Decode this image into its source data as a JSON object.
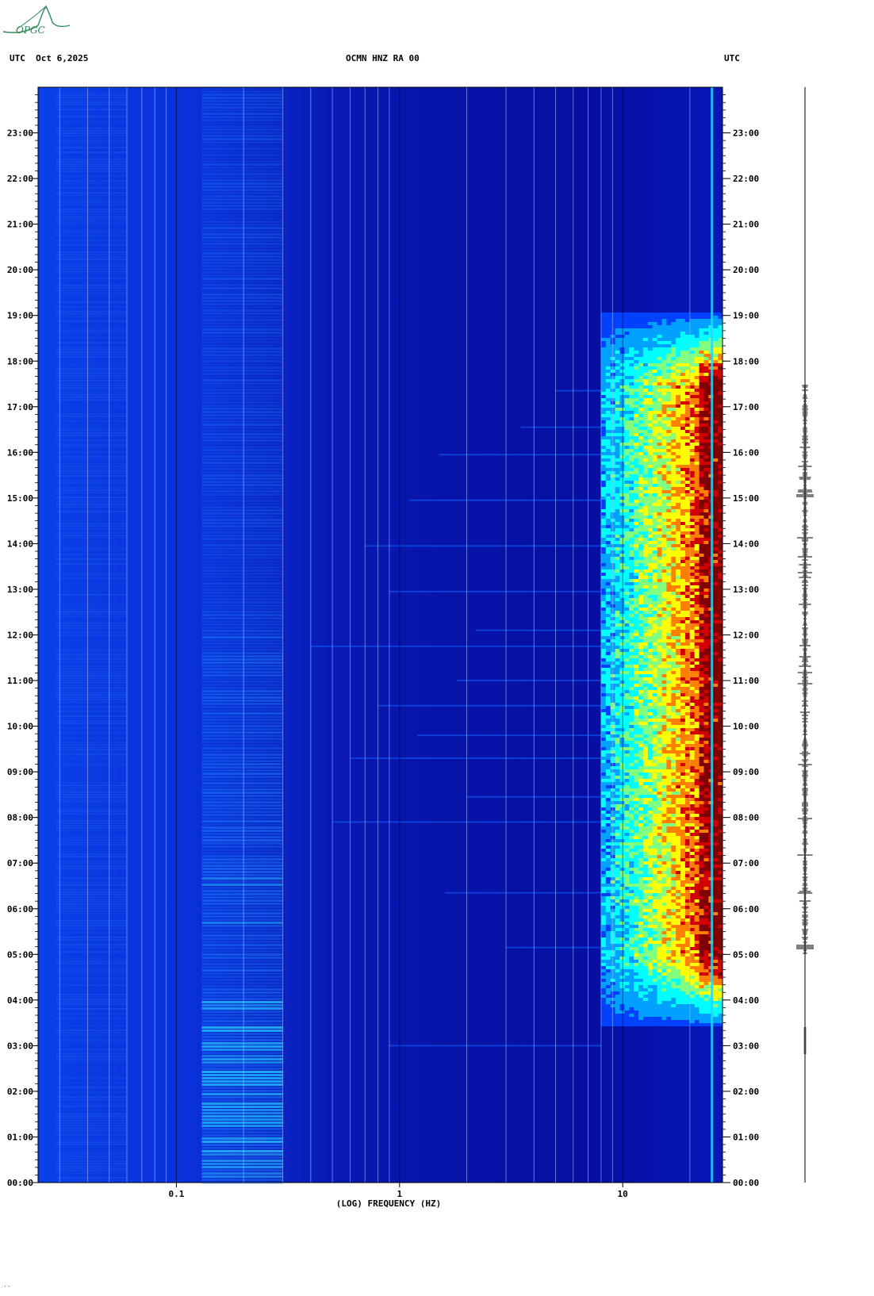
{
  "logo": {
    "text": "OPGC",
    "color": "#2e8b57"
  },
  "header": {
    "left": "UTC  Oct 6,2025",
    "center": "OCMN HNZ RA 00",
    "right": "UTC"
  },
  "footer_mark": "′′",
  "chart_data": {
    "type": "heatmap",
    "title": "OCMN HNZ RA 00",
    "xlabel": "(LOG) FREQUENCY (HZ)",
    "xscale": "log",
    "xlim": [
      0.024,
      28
    ],
    "x_ticks": [
      {
        "value": 0.1,
        "label": "0.1"
      },
      {
        "value": 1,
        "label": "1"
      },
      {
        "value": 10,
        "label": "10"
      }
    ],
    "ylabel": "UTC",
    "ylim": [
      "00:00",
      "24:00"
    ],
    "y_ticks": [
      "00:00",
      "01:00",
      "02:00",
      "03:00",
      "04:00",
      "05:00",
      "06:00",
      "07:00",
      "08:00",
      "09:00",
      "10:00",
      "11:00",
      "12:00",
      "13:00",
      "14:00",
      "15:00",
      "16:00",
      "17:00",
      "18:00",
      "19:00",
      "20:00",
      "21:00",
      "22:00",
      "23:00"
    ],
    "colormap": [
      "#00008b",
      "#0000d0",
      "#0040ff",
      "#00a0ff",
      "#00ffff",
      "#80ff80",
      "#ffff00",
      "#ff8000",
      "#d00000",
      "#800000"
    ],
    "features": {
      "microseism_band_hz": [
        0.13,
        0.3
      ],
      "tonal_line_hz": 25,
      "daytime_noise_window_utc": [
        "05:00",
        "17:30"
      ],
      "daytime_noise_band_hz": [
        8,
        28
      ]
    },
    "seismogram_trace": "right"
  }
}
